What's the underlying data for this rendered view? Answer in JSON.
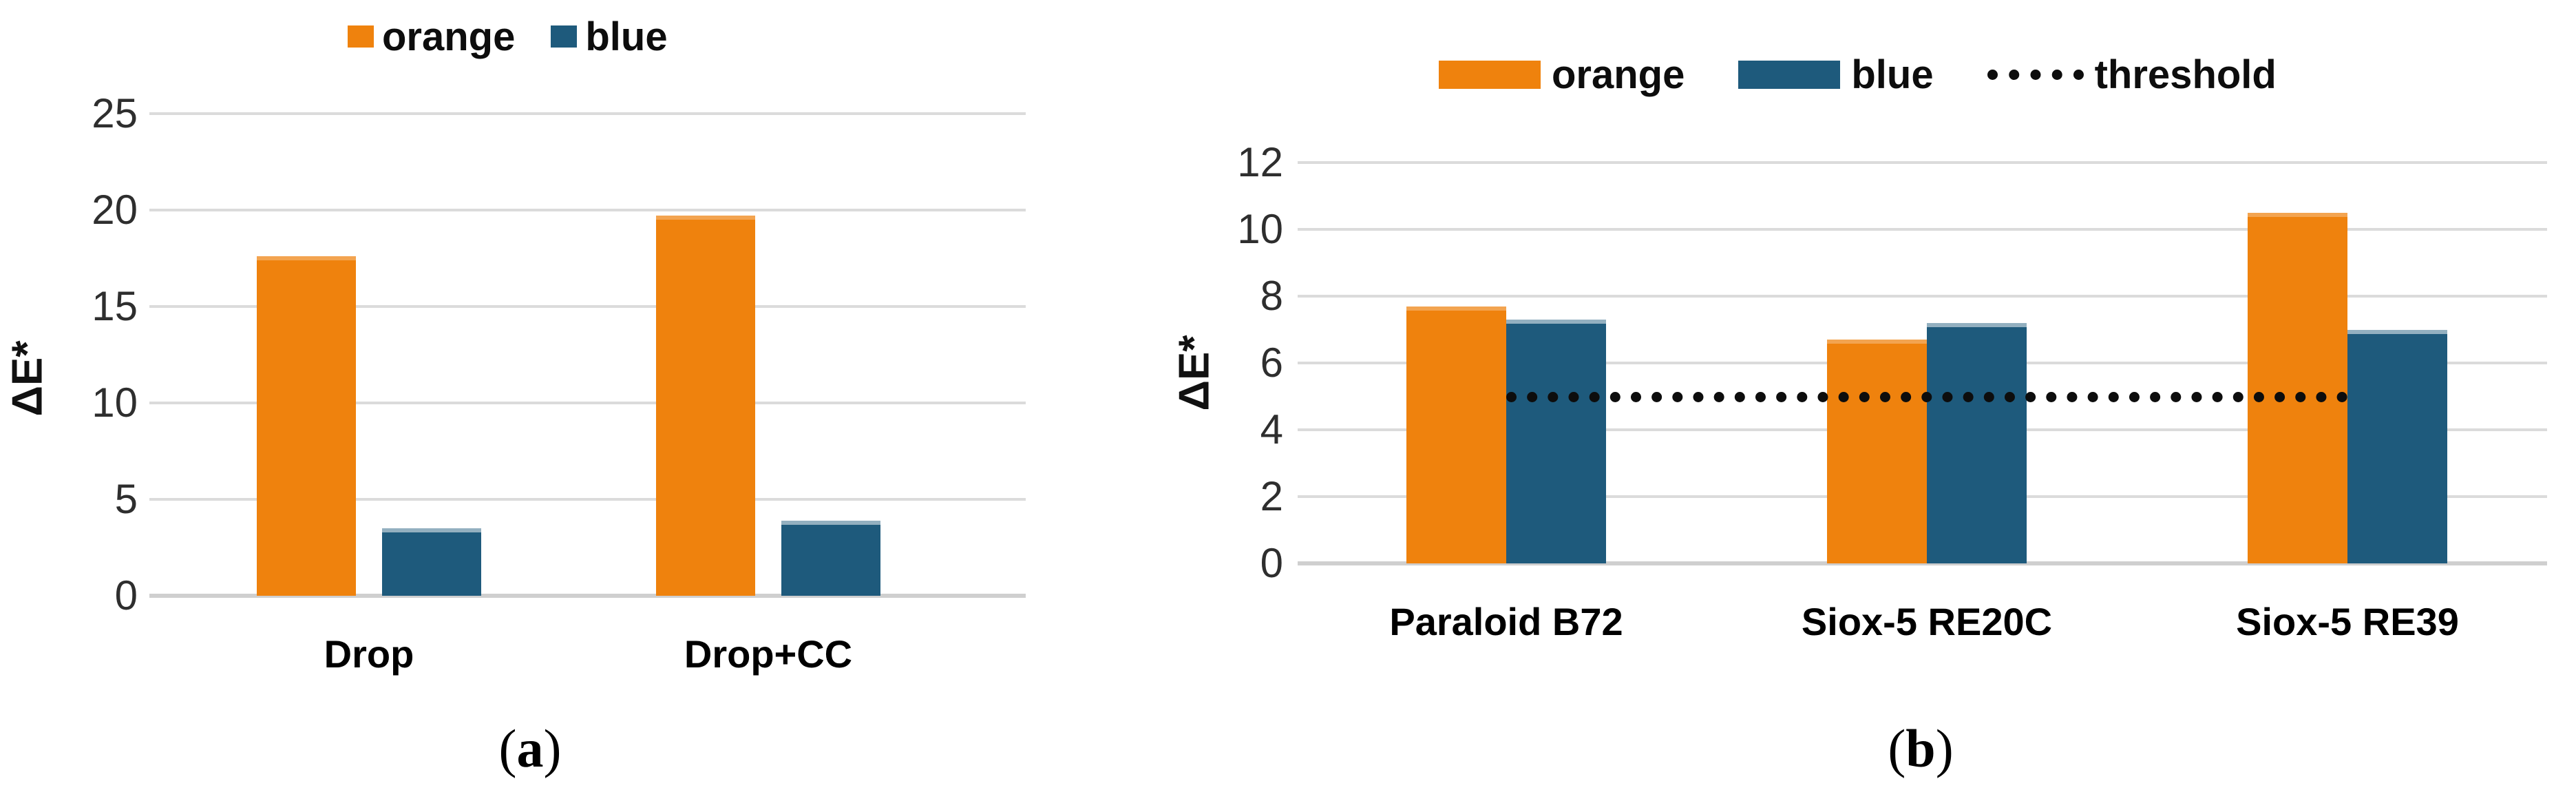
{
  "figure": {
    "panels": [
      {
        "caption_open": "(",
        "caption_letter": "a",
        "caption_close": ")"
      },
      {
        "caption_open": "(",
        "caption_letter": "b",
        "caption_close": ")"
      }
    ]
  },
  "chart_data": [
    {
      "type": "bar",
      "panel": "a",
      "title": "",
      "xlabel": "",
      "ylabel": "ΔE*",
      "categories": [
        "Drop",
        "Drop+CC"
      ],
      "series": [
        {
          "name": "orange",
          "color": "#EF820D",
          "values": [
            17.6,
            19.7
          ]
        },
        {
          "name": "blue",
          "color": "#1E5A7C",
          "values": [
            3.5,
            3.9
          ]
        }
      ],
      "ylim": [
        0,
        25
      ],
      "yticks": [
        0,
        5,
        10,
        15,
        20,
        25
      ],
      "grid": true,
      "legend_position": "top"
    },
    {
      "type": "bar",
      "panel": "b",
      "title": "",
      "xlabel": "",
      "ylabel": "ΔE*",
      "categories": [
        "Paraloid B72",
        "Siox-5 RE20C",
        "Siox-5 RE39"
      ],
      "series": [
        {
          "name": "orange",
          "color": "#EF820D",
          "values": [
            7.7,
            6.7,
            10.5
          ]
        },
        {
          "name": "blue",
          "color": "#1E5A7C",
          "values": [
            7.3,
            7.2,
            7.0
          ]
        }
      ],
      "threshold": {
        "name": "threshold",
        "value": 5,
        "color": "#0D0D0D",
        "style": "dotted"
      },
      "ylim": [
        0,
        12
      ],
      "yticks": [
        0,
        2,
        4,
        6,
        8,
        10,
        12
      ],
      "grid": true,
      "legend_position": "top"
    }
  ],
  "colors": {
    "orange": "#EF820D",
    "blue": "#1E5A7C",
    "gridline": "#DBDBDB",
    "axis_line": "#CFCFCF",
    "tick_text": "#2E2E2E",
    "label_text": "#000000",
    "threshold": "#0D0D0D",
    "background": "#FFFFFF"
  }
}
